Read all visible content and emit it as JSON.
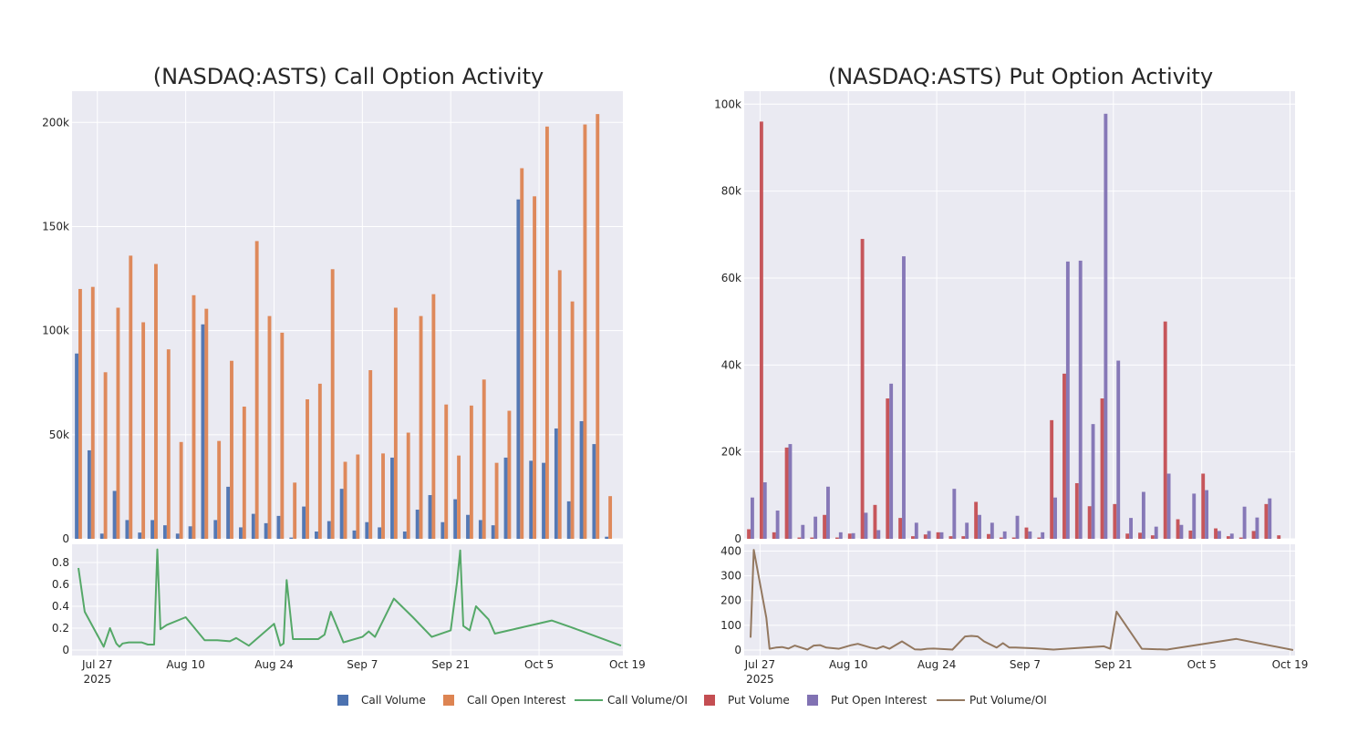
{
  "colors": {
    "call_volume": "#4c72b0",
    "call_oi": "#dd8452",
    "call_ratio": "#55a868",
    "put_volume": "#c44e52",
    "put_oi": "#8172b3",
    "put_ratio": "#937860",
    "plot_bg": "#eaeaf2",
    "grid": "#ffffff",
    "text": "#262626"
  },
  "legend": [
    {
      "label": "Call Volume",
      "kind": "box",
      "color_key": "call_volume"
    },
    {
      "label": "Call Open Interest",
      "kind": "box",
      "color_key": "call_oi"
    },
    {
      "label": "Call Volume/OI",
      "kind": "line",
      "color_key": "call_ratio"
    },
    {
      "label": "Put Volume",
      "kind": "box",
      "color_key": "put_volume"
    },
    {
      "label": "Put Open Interest",
      "kind": "box",
      "color_key": "put_oi"
    },
    {
      "label": "Put Volume/OI",
      "kind": "line",
      "color_key": "put_ratio"
    }
  ],
  "chart_data": [
    {
      "id": "call",
      "type": "bar",
      "title": "(NASDAQ:ASTS) Call Option Activity",
      "x_range": [
        0,
        86
      ],
      "x_ticks": [
        {
          "x": 3,
          "label": "Jul 27",
          "sub": "2025"
        },
        {
          "x": 17,
          "label": "Aug 10"
        },
        {
          "x": 31,
          "label": "Aug 24"
        },
        {
          "x": 45,
          "label": "Sep 7"
        },
        {
          "x": 59,
          "label": "Sep 21"
        },
        {
          "x": 73,
          "label": "Oct 5"
        },
        {
          "x": 87,
          "label": "Oct 19"
        }
      ],
      "bar_ylim": [
        0,
        215000
      ],
      "bar_yticks": [
        {
          "v": 0,
          "label": "0"
        },
        {
          "v": 50000,
          "label": "50k"
        },
        {
          "v": 100000,
          "label": "100k"
        },
        {
          "v": 150000,
          "label": "150k"
        },
        {
          "v": 200000,
          "label": "200k"
        }
      ],
      "bar_x": [
        0,
        2,
        4,
        6,
        8,
        10,
        12,
        14,
        16,
        18,
        20,
        22,
        24,
        26,
        28,
        30,
        32,
        34,
        36,
        38,
        40,
        42,
        44,
        46,
        48,
        50,
        52,
        54,
        56,
        58,
        60,
        62,
        64,
        66,
        68,
        70,
        72,
        74,
        76,
        78,
        80,
        82,
        84,
        86
      ],
      "series": [
        {
          "name": "Call Volume",
          "color_key": "call_volume",
          "values": [
            89000,
            42500,
            2500,
            23000,
            9000,
            3000,
            9000,
            6500,
            2500,
            6000,
            103000,
            9000,
            25000,
            5500,
            12000,
            7500,
            11000,
            600,
            15500,
            3500,
            8500,
            24000,
            4000,
            8000,
            5500,
            39000,
            3500,
            14000,
            21000,
            8000,
            19000,
            11500,
            9000,
            6500,
            39000,
            163000,
            37500,
            36500,
            53000,
            18000,
            56500,
            45500,
            1000,
            0
          ]
        },
        {
          "name": "Call Open Interest",
          "color_key": "call_oi",
          "values": [
            120000,
            121000,
            80000,
            111000,
            136000,
            104000,
            132000,
            91000,
            46500,
            117000,
            110500,
            47000,
            85500,
            63500,
            143000,
            107000,
            99000,
            27000,
            67000,
            74500,
            129500,
            37000,
            40500,
            81000,
            41000,
            111000,
            51000,
            107000,
            117500,
            64500,
            40000,
            64000,
            76500,
            36500,
            61500,
            178000,
            164500,
            198000,
            129000,
            114000,
            199000,
            204000,
            20500,
            0
          ]
        }
      ],
      "ratio": {
        "name": "Call Volume/OI",
        "color_key": "call_ratio",
        "ylim": [
          0,
          0.95
        ],
        "yticks": [
          {
            "v": 0,
            "label": "0"
          },
          {
            "v": 0.2,
            "label": "0.2"
          },
          {
            "v": 0.4,
            "label": "0.4"
          },
          {
            "v": 0.6,
            "label": "0.6"
          },
          {
            "v": 0.8,
            "label": "0.8"
          }
        ],
        "x": [
          0,
          1,
          4,
          5,
          6,
          6.5,
          7,
          8,
          10,
          11,
          12,
          12.5,
          13,
          14,
          17,
          20,
          22,
          24,
          25,
          27,
          31,
          32,
          32.5,
          33,
          34,
          38,
          39,
          40,
          42,
          45,
          46,
          47,
          50,
          53,
          56,
          59,
          60,
          60.5,
          61,
          62,
          63,
          65,
          66,
          75,
          78,
          86
        ],
        "values": [
          0.75,
          0.35,
          0.03,
          0.2,
          0.06,
          0.03,
          0.06,
          0.07,
          0.07,
          0.05,
          0.05,
          0.92,
          0.19,
          0.23,
          0.3,
          0.09,
          0.09,
          0.08,
          0.11,
          0.04,
          0.24,
          0.04,
          0.06,
          0.64,
          0.1,
          0.1,
          0.14,
          0.35,
          0.07,
          0.12,
          0.17,
          0.12,
          0.47,
          0.3,
          0.12,
          0.18,
          0.62,
          0.91,
          0.22,
          0.18,
          0.4,
          0.28,
          0.15,
          0.27,
          0.21,
          0.04
        ]
      }
    },
    {
      "id": "put",
      "type": "bar",
      "title": "(NASDAQ:ASTS) Put Option Activity",
      "x_range": [
        0,
        86
      ],
      "x_ticks": [
        {
          "x": 1.5,
          "label": "Jul 27",
          "sub": "2025"
        },
        {
          "x": 15.5,
          "label": "Aug 10"
        },
        {
          "x": 29.5,
          "label": "Aug 24"
        },
        {
          "x": 43.5,
          "label": "Sep 7"
        },
        {
          "x": 57.5,
          "label": "Sep 21"
        },
        {
          "x": 71.5,
          "label": "Oct 5"
        },
        {
          "x": 85.5,
          "label": "Oct 19"
        }
      ],
      "bar_ylim": [
        0,
        103000
      ],
      "bar_yticks": [
        {
          "v": 0,
          "label": "0"
        },
        {
          "v": 20000,
          "label": "20k"
        },
        {
          "v": 40000,
          "label": "40k"
        },
        {
          "v": 60000,
          "label": "60k"
        },
        {
          "v": 80000,
          "label": "80k"
        },
        {
          "v": 100000,
          "label": "100k"
        }
      ],
      "bar_x": [
        0,
        2,
        4,
        6,
        8,
        10,
        12,
        14,
        16,
        18,
        20,
        22,
        24,
        26,
        28,
        30,
        32,
        34,
        36,
        38,
        40,
        42,
        44,
        46,
        48,
        50,
        52,
        54,
        56,
        58,
        60,
        62,
        64,
        66,
        68,
        70,
        72,
        74,
        76,
        78,
        80,
        82,
        84,
        86
      ],
      "series": [
        {
          "name": "Put Volume",
          "color_key": "put_volume",
          "values": [
            2200,
            96000,
            1500,
            21000,
            300,
            300,
            5500,
            300,
            1200,
            69000,
            7800,
            32300,
            4800,
            600,
            1000,
            1500,
            600,
            600,
            8500,
            1100,
            300,
            300,
            2600,
            300,
            27300,
            38000,
            12800,
            7500,
            32300,
            8000,
            1200,
            1400,
            800,
            50000,
            4500,
            1900,
            15000,
            2400,
            600,
            300,
            1800,
            8000,
            800,
            0
          ]
        },
        {
          "name": "Put Open Interest",
          "color_key": "put_oi",
          "values": [
            9500,
            13000,
            6500,
            21800,
            3200,
            5100,
            12000,
            1500,
            1300,
            6000,
            2000,
            35700,
            65000,
            3700,
            1800,
            1500,
            11500,
            3700,
            5500,
            3700,
            1700,
            5300,
            1700,
            1500,
            9500,
            63800,
            64000,
            26400,
            97800,
            41000,
            4800,
            10800,
            2800,
            15000,
            3200,
            10400,
            11200,
            1800,
            1200,
            7400,
            4900,
            9300,
            0,
            0
          ]
        }
      ],
      "ratio": {
        "name": "Put Volume/OI",
        "color_key": "put_ratio",
        "ylim": [
          0,
          420
        ],
        "yticks": [
          {
            "v": 0,
            "label": "0"
          },
          {
            "v": 100,
            "label": "100"
          },
          {
            "v": 200,
            "label": "200"
          },
          {
            "v": 300,
            "label": "300"
          },
          {
            "v": 400,
            "label": "400"
          }
        ],
        "x": [
          0,
          0.5,
          2.5,
          3,
          4,
          5,
          6,
          7,
          9,
          10,
          11,
          12,
          14,
          16,
          17,
          19,
          20,
          21,
          22,
          24,
          26,
          27,
          28,
          29,
          32,
          34,
          35,
          36,
          37,
          39,
          40,
          41,
          42,
          45,
          48,
          56,
          57,
          58,
          62,
          66,
          77,
          86
        ],
        "values": [
          50,
          405,
          130,
          5,
          10,
          12,
          6,
          18,
          2,
          18,
          20,
          10,
          5,
          20,
          25,
          10,
          5,
          15,
          5,
          35,
          3,
          2,
          5,
          6,
          2,
          55,
          57,
          55,
          35,
          10,
          28,
          10,
          10,
          7,
          2,
          15,
          5,
          155,
          5,
          2,
          45,
          0
        ]
      }
    }
  ]
}
